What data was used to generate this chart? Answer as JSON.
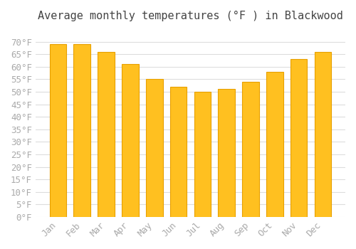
{
  "title": "Average monthly temperatures (°F ) in Blackwood",
  "months": [
    "Jan",
    "Feb",
    "Mar",
    "Apr",
    "May",
    "Jun",
    "Jul",
    "Aug",
    "Sep",
    "Oct",
    "Nov",
    "Dec"
  ],
  "values": [
    69,
    69,
    66,
    61,
    55,
    52,
    50,
    51,
    54,
    58,
    63,
    66
  ],
  "bar_color": "#FFC020",
  "bar_edge_color": "#E8A000",
  "background_color": "#FFFFFF",
  "grid_color": "#DDDDDD",
  "tick_label_color": "#AAAAAA",
  "title_color": "#444444",
  "ylim": [
    0,
    75
  ],
  "yticks": [
    0,
    5,
    10,
    15,
    20,
    25,
    30,
    35,
    40,
    45,
    50,
    55,
    60,
    65,
    70
  ],
  "title_fontsize": 11,
  "tick_fontsize": 9,
  "font_family": "monospace"
}
